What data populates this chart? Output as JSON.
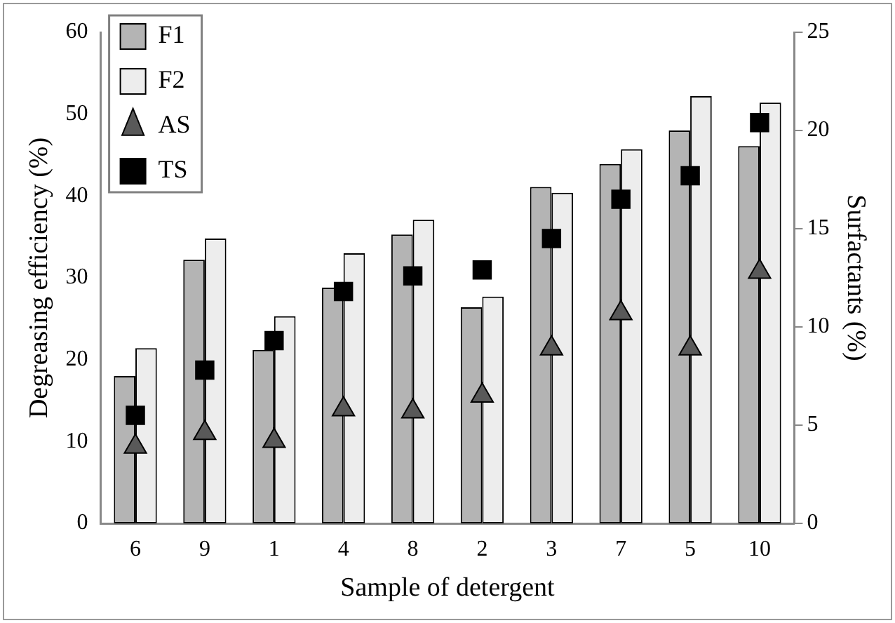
{
  "chart_data": {
    "type": "bar",
    "xlabel": "Sample of detergent",
    "ylabel": "Degreasing efficiency (%)",
    "y2label": "Surfactants (%)",
    "categories": [
      "6",
      "9",
      "1",
      "4",
      "8",
      "2",
      "3",
      "7",
      "5",
      "10"
    ],
    "series": [
      {
        "name": "F1",
        "color": "#b4b4b4",
        "values": [
          18,
          32.2,
          21.2,
          28.8,
          35.3,
          26.4,
          41.1,
          43.9,
          48,
          46.1
        ]
      },
      {
        "name": "F2",
        "color": "#ededed",
        "values": [
          21.4,
          34.8,
          25.3,
          33,
          37.1,
          27.7,
          40.4,
          45.7,
          52.2,
          51.4
        ]
      },
      {
        "name": "AS",
        "type": "scatter",
        "axis": "y2",
        "marker": "triangle",
        "color": "#595959",
        "values": [
          3.9,
          4.6,
          4.2,
          5.8,
          5.7,
          6.5,
          8.9,
          10.7,
          8.9,
          12.8
        ]
      },
      {
        "name": "TS",
        "type": "scatter",
        "axis": "y2",
        "marker": "square",
        "color": "#000000",
        "values": [
          5.5,
          7.8,
          9.3,
          11.8,
          12.6,
          12.9,
          14.5,
          16.5,
          17.7,
          20.4
        ]
      }
    ],
    "ylim": [
      0,
      60
    ],
    "yticks": [
      0,
      10,
      20,
      30,
      40,
      50,
      60
    ],
    "y2lim": [
      0,
      25
    ],
    "y2ticks": [
      0,
      5,
      10,
      15,
      20,
      25
    ],
    "grid": false,
    "legend": "top left"
  }
}
